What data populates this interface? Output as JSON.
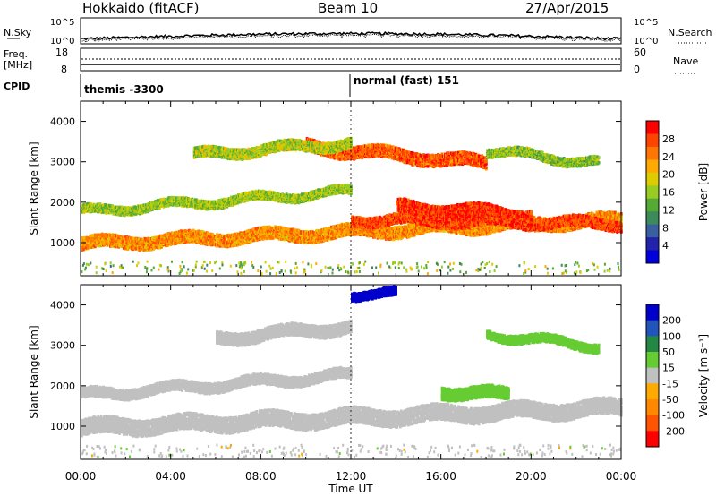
{
  "header": {
    "station": "Hokkaido (fitACF)",
    "beam": "Beam 10",
    "date": "27/Apr/2015"
  },
  "noise_panel": {
    "left_label": "N.Sky",
    "right_label": "N.Search",
    "left_ticks": [
      "10^5",
      "10^0"
    ],
    "right_ticks": [
      "10^5",
      "10^0"
    ]
  },
  "freq_panel": {
    "left_label_1": "Freq.",
    "left_label_2": "[MHz]",
    "left_ticks": [
      "18",
      "8"
    ],
    "right_ticks": [
      "60",
      "0"
    ],
    "right_label": "Nave"
  },
  "cpid": {
    "label": "CPID",
    "segments": [
      {
        "name": "themis -3300"
      },
      {
        "name": "normal (fast) 151"
      }
    ]
  },
  "colors": {
    "power_scale": [
      "#0000dd",
      "#2222aa",
      "#3a5fa0",
      "#3d8a5a",
      "#55aa33",
      "#99cc22",
      "#ddcc00",
      "#ffaa00",
      "#ff7700",
      "#ff4400",
      "#ff0000"
    ],
    "velocity_scale": [
      "#0000cc",
      "#2255bb",
      "#228844",
      "#66cc33",
      "#c0c0c0",
      "#ffaa00",
      "#ff8800",
      "#ff5500",
      "#ff0000"
    ]
  },
  "chart_data": [
    {
      "type": "heatmap",
      "name": "power",
      "ylabel": "Slant Range [km]",
      "yticks": [
        "4000",
        "3000",
        "2000",
        "1000"
      ],
      "ylim": [
        180,
        4500
      ],
      "colorbar_label": "Power [dB]",
      "colorbar_ticks": [
        "28",
        "24",
        "20",
        "16",
        "12",
        "8",
        "4"
      ],
      "colorbar_range": [
        0,
        30
      ],
      "bands": [
        {
          "t0": 0,
          "t1": 24,
          "r_start": 1000,
          "r_end": 1600,
          "r_width": 300,
          "value": 22
        },
        {
          "t0": 0,
          "t1": 12,
          "r_start": 1800,
          "r_end": 2300,
          "r_width": 200,
          "value": 15
        },
        {
          "t0": 12,
          "t1": 24,
          "r_start": 1600,
          "r_end": 1500,
          "r_width": 250,
          "value": 26
        },
        {
          "t0": 14,
          "t1": 20,
          "r_start": 1900,
          "r_end": 1700,
          "r_width": 350,
          "value": 27
        },
        {
          "t0": 10,
          "t1": 18,
          "r_start": 3400,
          "r_end": 3000,
          "r_width": 300,
          "value": 25
        },
        {
          "t0": 5,
          "t1": 12,
          "r_start": 3200,
          "r_end": 3500,
          "r_width": 250,
          "value": 16
        },
        {
          "t0": 18,
          "t1": 23,
          "r_start": 3300,
          "r_end": 3000,
          "r_width": 200,
          "value": 14
        }
      ]
    },
    {
      "type": "heatmap",
      "name": "velocity",
      "ylabel": "Slant Range [km]",
      "yticks": [
        "4000",
        "3000",
        "2000",
        "1000"
      ],
      "ylim": [
        180,
        4500
      ],
      "colorbar_label": "Velocity [m s⁻¹]",
      "colorbar_ticks": [
        "200",
        "100",
        "50",
        "15",
        "-15",
        "-50",
        "-100",
        "-200"
      ],
      "colorbar_range": [
        -250,
        250
      ],
      "bands": [
        {
          "t0": 0,
          "t1": 24,
          "r_start": 1000,
          "r_end": 1500,
          "r_width": 400,
          "value": 0
        },
        {
          "t0": 0,
          "t1": 12,
          "r_start": 1800,
          "r_end": 2300,
          "r_width": 250,
          "value": 0
        },
        {
          "t0": 16,
          "t1": 19,
          "r_start": 1900,
          "r_end": 1800,
          "r_width": 300,
          "value": 60
        },
        {
          "t0": 12,
          "t1": 14,
          "r_start": 4300,
          "r_end": 4300,
          "r_width": 200,
          "value": 220
        },
        {
          "t0": 18,
          "t1": 23,
          "r_start": 3300,
          "r_end": 3000,
          "r_width": 200,
          "value": 60
        },
        {
          "t0": 6,
          "t1": 12,
          "r_start": 3200,
          "r_end": 3500,
          "r_width": 300,
          "value": 0
        }
      ]
    }
  ],
  "x_axis": {
    "label": "Time UT",
    "ticks": [
      "00:00",
      "04:00",
      "08:00",
      "12:00",
      "16:00",
      "20:00",
      "00:00"
    ],
    "xlim": [
      0,
      24
    ]
  }
}
